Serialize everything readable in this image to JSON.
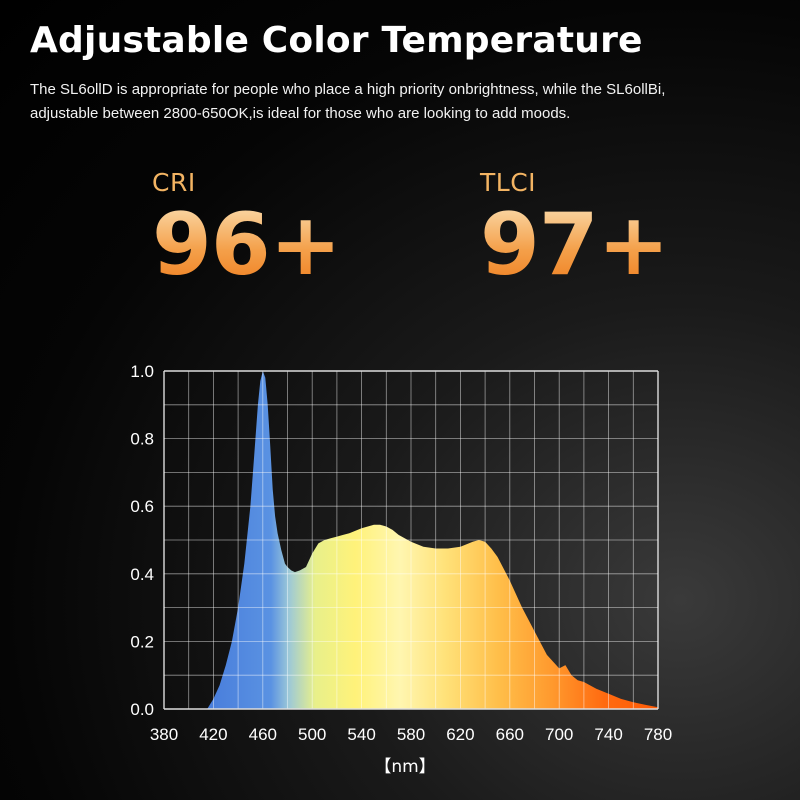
{
  "heading": "Adjustable Color Temperature",
  "description": {
    "line1": "The SL6ollD is appropriate for people who place a high priority onbrightness, while the SL6ollBi,",
    "line2": "adjustable between 2800-650OK,is ideal for those who are looking to add moods."
  },
  "metrics": [
    {
      "label": "CRI",
      "value": "96+"
    },
    {
      "label": "TLCI",
      "value": "97+"
    }
  ],
  "colors": {
    "accent": "#f3b463",
    "spectrum_blue": "#5a8fe0",
    "spectrum_yellow": "#fff27a",
    "spectrum_orange": "#ff6a10"
  },
  "chart_data": {
    "type": "area",
    "xlabel": "【nm】",
    "ylabel": "",
    "title": "",
    "xlim": [
      380,
      780
    ],
    "ylim": [
      0,
      1.0
    ],
    "x_ticks": [
      "380",
      "420",
      "460",
      "500",
      "540",
      "580",
      "620",
      "660",
      "700",
      "740",
      "780"
    ],
    "y_ticks": [
      "0.0",
      "0.2",
      "0.4",
      "0.6",
      "0.8",
      "1.0"
    ],
    "grid": true,
    "x": [
      380,
      415,
      420,
      425,
      430,
      435,
      440,
      445,
      450,
      453,
      456,
      458,
      460,
      462,
      464,
      466,
      468,
      470,
      472,
      475,
      478,
      480,
      483,
      486,
      490,
      495,
      500,
      505,
      510,
      515,
      520,
      525,
      530,
      540,
      550,
      555,
      560,
      565,
      570,
      580,
      590,
      600,
      610,
      620,
      630,
      635,
      640,
      645,
      650,
      660,
      670,
      680,
      690,
      700,
      705,
      710,
      715,
      720,
      730,
      740,
      750,
      760,
      770,
      780
    ],
    "values": [
      0,
      0,
      0.03,
      0.07,
      0.13,
      0.2,
      0.3,
      0.43,
      0.6,
      0.75,
      0.9,
      0.97,
      1.0,
      0.98,
      0.9,
      0.78,
      0.65,
      0.57,
      0.52,
      0.47,
      0.43,
      0.42,
      0.41,
      0.405,
      0.41,
      0.42,
      0.46,
      0.49,
      0.5,
      0.505,
      0.51,
      0.515,
      0.52,
      0.535,
      0.545,
      0.545,
      0.54,
      0.53,
      0.515,
      0.495,
      0.48,
      0.475,
      0.475,
      0.48,
      0.495,
      0.5,
      0.495,
      0.475,
      0.45,
      0.38,
      0.3,
      0.23,
      0.16,
      0.12,
      0.13,
      0.1,
      0.085,
      0.08,
      0.06,
      0.045,
      0.03,
      0.02,
      0.012,
      0.005
    ]
  }
}
